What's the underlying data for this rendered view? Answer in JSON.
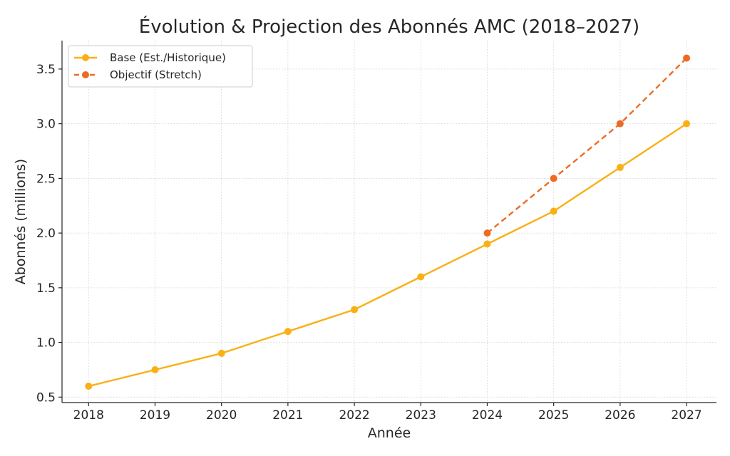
{
  "chart_data": {
    "type": "line",
    "title": "Évolution & Projection des Abonnés AMC (2018–2027)",
    "xlabel": "Année",
    "ylabel": "Abonnés (millions)",
    "x": [
      2018,
      2019,
      2020,
      2021,
      2022,
      2023,
      2024,
      2025,
      2026,
      2027
    ],
    "xlim": [
      2017.6,
      2027.45
    ],
    "ylim": [
      0.45,
      3.76
    ],
    "yticks": [
      0.5,
      1.0,
      1.5,
      2.0,
      2.5,
      3.0,
      3.5
    ],
    "grid": true,
    "legend_position": "top-left",
    "series": [
      {
        "name": "Base (Est./Historique)",
        "color": "#F9B015",
        "style": "solid",
        "x": [
          2018,
          2019,
          2020,
          2021,
          2022,
          2023,
          2024,
          2025,
          2026,
          2027
        ],
        "values": [
          0.6,
          0.75,
          0.9,
          1.1,
          1.3,
          1.6,
          1.9,
          2.2,
          2.6,
          3.0
        ]
      },
      {
        "name": "Objectif (Stretch)",
        "color": "#EE6A24",
        "style": "dashed",
        "x": [
          2024,
          2025,
          2026,
          2027
        ],
        "values": [
          2.0,
          2.5,
          3.0,
          3.6
        ]
      }
    ]
  }
}
